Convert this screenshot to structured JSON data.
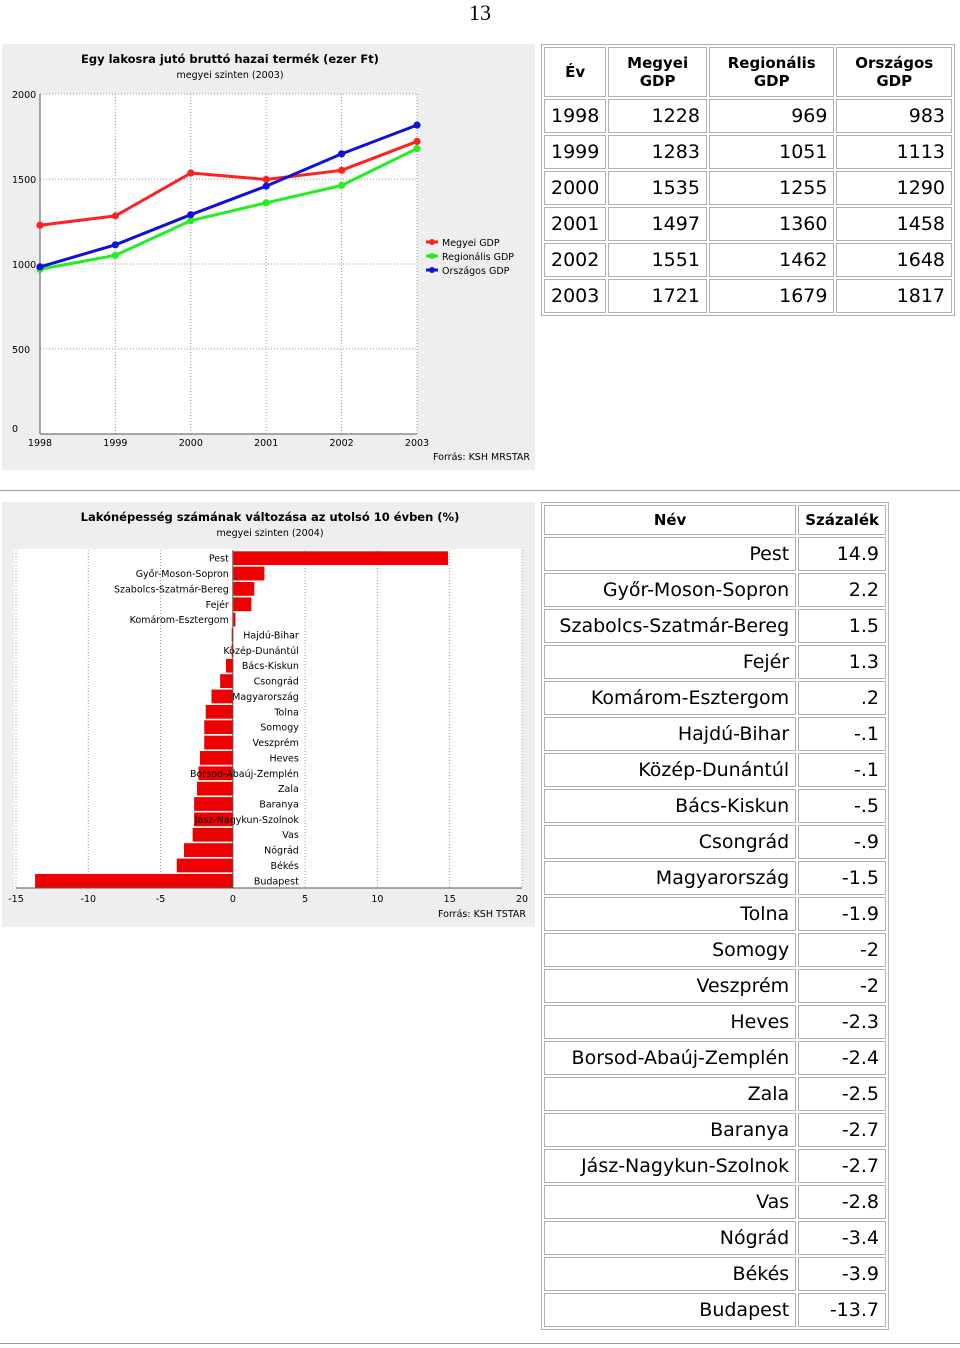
{
  "page_number": "13",
  "gdp_chart": {
    "title": "Egy lakosra jutó bruttó hazai termék (ezer Ft)",
    "subtitle": "megyei szinten (2003)",
    "source": "Forrás: KSH MRSTAR",
    "legend_position": "right",
    "colors": {
      "Megyei GDP": "#ff2020",
      "Regionális GDP": "#22ee22",
      "Országos GDP": "#1010dd"
    },
    "icons": {
      "legend_marker": "line-dot-icon"
    }
  },
  "gdp_table": {
    "headers": [
      "Év",
      "Megyei GDP",
      "Regionális GDP",
      "Országos GDP"
    ],
    "rows": [
      [
        "1998",
        "1228",
        "969",
        "983"
      ],
      [
        "1999",
        "1283",
        "1051",
        "1113"
      ],
      [
        "2000",
        "1535",
        "1255",
        "1290"
      ],
      [
        "2001",
        "1497",
        "1360",
        "1458"
      ],
      [
        "2002",
        "1551",
        "1462",
        "1648"
      ],
      [
        "2003",
        "1721",
        "1679",
        "1817"
      ]
    ]
  },
  "pop_chart": {
    "title": "Lakónépesség számának változása az utolsó 10 évben (%)",
    "subtitle": "megyei szinten (2004)",
    "source": "Forrás: KSH TSTAR",
    "bar_color": "#ee0000"
  },
  "pop_table": {
    "headers": [
      "Név",
      "Százalék"
    ],
    "rows": [
      [
        "Pest",
        "14.9"
      ],
      [
        "Győr-Moson-Sopron",
        "2.2"
      ],
      [
        "Szabolcs-Szatmár-Bereg",
        "1.5"
      ],
      [
        "Fejér",
        "1.3"
      ],
      [
        "Komárom-Esztergom",
        ".2"
      ],
      [
        "Hajdú-Bihar",
        "-.1"
      ],
      [
        "Közép-Dunántúl",
        "-.1"
      ],
      [
        "Bács-Kiskun",
        "-.5"
      ],
      [
        "Csongrád",
        "-.9"
      ],
      [
        "Magyarország",
        "-1.5"
      ],
      [
        "Tolna",
        "-1.9"
      ],
      [
        "Somogy",
        "-2"
      ],
      [
        "Veszprém",
        "-2"
      ],
      [
        "Heves",
        "-2.3"
      ],
      [
        "Borsod-Abaúj-Zemplén",
        "-2.4"
      ],
      [
        "Zala",
        "-2.5"
      ],
      [
        "Baranya",
        "-2.7"
      ],
      [
        "Jász-Nagykun-Szolnok",
        "-2.7"
      ],
      [
        "Vas",
        "-2.8"
      ],
      [
        "Nógrád",
        "-3.4"
      ],
      [
        "Békés",
        "-3.9"
      ],
      [
        "Budapest",
        "-13.7"
      ]
    ]
  },
  "chart_data": [
    {
      "type": "line",
      "title": "Egy lakosra jutó bruttó hazai termék (ezer Ft)",
      "subtitle": "megyei szinten (2003)",
      "x": [
        "1998",
        "1999",
        "2000",
        "2001",
        "2002",
        "2003"
      ],
      "series": [
        {
          "name": "Megyei GDP",
          "values": [
            1228,
            1283,
            1535,
            1497,
            1551,
            1721
          ]
        },
        {
          "name": "Regionális GDP",
          "values": [
            969,
            1051,
            1255,
            1360,
            1462,
            1679
          ]
        },
        {
          "name": "Országos GDP",
          "values": [
            983,
            1113,
            1290,
            1458,
            1648,
            1817
          ]
        }
      ],
      "ylim": [
        0,
        2000
      ],
      "yticks": [
        0,
        500,
        1000,
        1500,
        2000
      ],
      "grid": true,
      "legend": "right"
    },
    {
      "type": "bar",
      "orientation": "horizontal",
      "title": "Lakónépesség számának változása az utolsó 10 évben (%)",
      "subtitle": "megyei szinten (2004)",
      "categories": [
        "Pest",
        "Győr-Moson-Sopron",
        "Szabolcs-Szatmár-Bereg",
        "Fejér",
        "Komárom-Esztergom",
        "Hajdú-Bihar",
        "Közép-Dunántúl",
        "Bács-Kiskun",
        "Csongrád",
        "Magyarország",
        "Tolna",
        "Somogy",
        "Veszprém",
        "Heves",
        "Borsod-Abaúj-Zemplén",
        "Zala",
        "Baranya",
        "Jász-Nagykun-Szolnok",
        "Vas",
        "Nógrád",
        "Békés",
        "Budapest"
      ],
      "values": [
        14.9,
        2.2,
        1.5,
        1.3,
        0.2,
        -0.1,
        -0.1,
        -0.5,
        -0.9,
        -1.5,
        -1.9,
        -2,
        -2,
        -2.3,
        -2.4,
        -2.5,
        -2.7,
        -2.7,
        -2.8,
        -3.4,
        -3.9,
        -13.7
      ],
      "xlim": [
        -15,
        20
      ],
      "xticks": [
        -15,
        -10,
        -5,
        0,
        5,
        10,
        15,
        20
      ],
      "grid": true
    }
  ]
}
